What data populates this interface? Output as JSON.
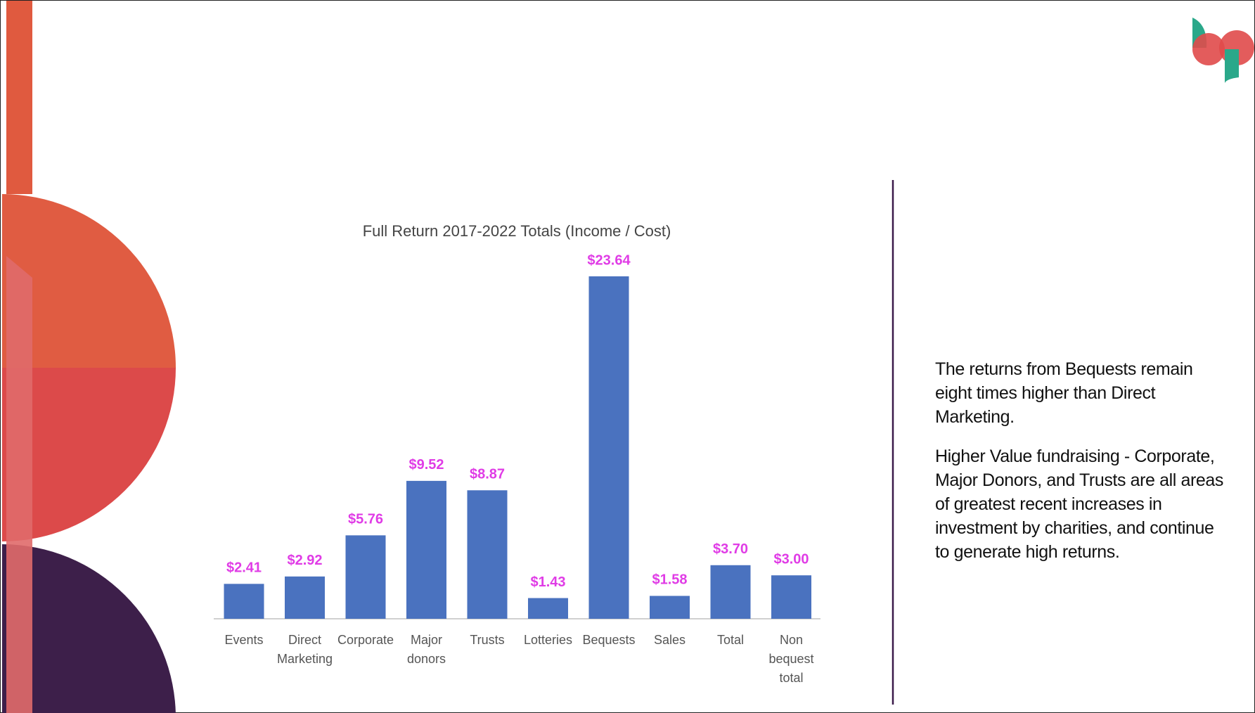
{
  "chart_data": {
    "type": "bar",
    "title": "Full Return 2017-2022 Totals (Income / Cost)",
    "categories": [
      "Events",
      "Direct Marketing",
      "Corporate",
      "Major donors",
      "Trusts",
      "Lotteries",
      "Bequests",
      "Sales",
      "Total",
      "Non bequest total"
    ],
    "values": [
      2.41,
      2.92,
      5.76,
      9.52,
      8.87,
      1.43,
      23.64,
      1.58,
      3.7,
      3.0
    ],
    "value_labels": [
      "$2.41",
      "$2.92",
      "$5.76",
      "$9.52",
      "$8.87",
      "$1.43",
      "$23.64",
      "$1.58",
      "$3.70",
      "$3.00"
    ],
    "color": "#4a72bf"
  },
  "notes": [
    "The returns from Bequests remain eight times higher than Direct Marketing.",
    "Higher Value fundraising - Corporate, Major Donors, and Trusts are all areas of greatest recent increases in investment by charities, and continue to generate high returns."
  ]
}
